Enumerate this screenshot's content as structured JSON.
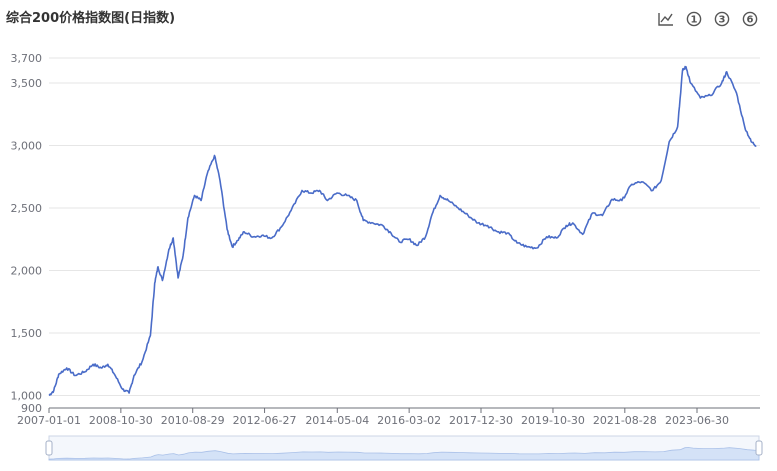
{
  "title": "综合200价格指数图(日指数)",
  "toolbar": {
    "items": [
      {
        "name": "line-chart-icon"
      },
      {
        "name": "period-1-button",
        "label": "1"
      },
      {
        "name": "period-3-button",
        "label": "3"
      },
      {
        "name": "period-6-button",
        "label": "6"
      }
    ]
  },
  "colors": {
    "line": "#4a6cc8",
    "grid": "#e6e6e6",
    "axis": "#6e7079",
    "zoom_fill": "#d4e2f7",
    "zoom_border": "#cdd6e6"
  },
  "chart_data": {
    "type": "line",
    "title": "综合200价格指数图(日指数)",
    "xlabel": "",
    "ylabel": "",
    "x_range": [
      "2007-01-01",
      "2024-12-31"
    ],
    "ylim": [
      900,
      3700
    ],
    "y_ticks": [
      900,
      1000,
      1500,
      2000,
      2500,
      3000,
      3500,
      3700
    ],
    "y_tick_labels": [
      "900",
      "1,000",
      "1,500",
      "2,000",
      "2,500",
      "3,000",
      "3,500",
      "3,700"
    ],
    "x_tick_labels": [
      "2007-01-01",
      "2008-10-30",
      "2010-08-29",
      "2012-06-27",
      "2014-05-04",
      "2016-03-02",
      "2017-12-30",
      "2019-10-30",
      "2021-08-28",
      "2023-06-30"
    ],
    "grid": true,
    "legend": "none",
    "series": [
      {
        "points": [
          [
            "2007-01-01",
            1000
          ],
          [
            "2007-02-15",
            1040
          ],
          [
            "2007-04-01",
            1170
          ],
          [
            "2007-06-15",
            1220
          ],
          [
            "2007-09-01",
            1160
          ],
          [
            "2007-12-01",
            1190
          ],
          [
            "2008-02-15",
            1250
          ],
          [
            "2008-05-01",
            1220
          ],
          [
            "2008-07-01",
            1250
          ],
          [
            "2008-09-01",
            1170
          ],
          [
            "2008-11-15",
            1050
          ],
          [
            "2009-01-15",
            1020
          ],
          [
            "2009-03-01",
            1160
          ],
          [
            "2009-05-15",
            1270
          ],
          [
            "2009-08-01",
            1480
          ],
          [
            "2009-09-10",
            1900
          ],
          [
            "2009-10-10",
            2030
          ],
          [
            "2009-11-20",
            1920
          ],
          [
            "2010-01-20",
            2170
          ],
          [
            "2010-03-01",
            2260
          ],
          [
            "2010-04-15",
            1940
          ],
          [
            "2010-06-01",
            2120
          ],
          [
            "2010-07-15",
            2420
          ],
          [
            "2010-09-15",
            2600
          ],
          [
            "2010-11-15",
            2560
          ],
          [
            "2011-01-10",
            2770
          ],
          [
            "2011-03-20",
            2920
          ],
          [
            "2011-05-10",
            2720
          ],
          [
            "2011-07-15",
            2330
          ],
          [
            "2011-09-01",
            2190
          ],
          [
            "2011-10-20",
            2240
          ],
          [
            "2011-12-20",
            2310
          ],
          [
            "2012-03-15",
            2270
          ],
          [
            "2012-06-01",
            2280
          ],
          [
            "2012-09-01",
            2260
          ],
          [
            "2012-12-01",
            2350
          ],
          [
            "2013-03-01",
            2480
          ],
          [
            "2013-06-10",
            2640
          ],
          [
            "2013-09-01",
            2620
          ],
          [
            "2013-11-20",
            2640
          ],
          [
            "2014-02-01",
            2560
          ],
          [
            "2014-05-01",
            2620
          ],
          [
            "2014-08-01",
            2600
          ],
          [
            "2014-11-01",
            2560
          ],
          [
            "2015-01-01",
            2400
          ],
          [
            "2015-04-01",
            2380
          ],
          [
            "2015-07-01",
            2360
          ],
          [
            "2015-09-15",
            2300
          ],
          [
            "2015-12-01",
            2230
          ],
          [
            "2016-03-01",
            2250
          ],
          [
            "2016-05-15",
            2200
          ],
          [
            "2016-08-01",
            2270
          ],
          [
            "2016-10-01",
            2450
          ],
          [
            "2016-12-15",
            2600
          ],
          [
            "2017-03-01",
            2560
          ],
          [
            "2017-06-01",
            2500
          ],
          [
            "2017-09-01",
            2440
          ],
          [
            "2017-12-01",
            2380
          ],
          [
            "2018-03-01",
            2360
          ],
          [
            "2018-06-01",
            2310
          ],
          [
            "2018-09-01",
            2300
          ],
          [
            "2018-12-01",
            2220
          ],
          [
            "2019-03-01",
            2190
          ],
          [
            "2019-06-01",
            2180
          ],
          [
            "2019-09-01",
            2270
          ],
          [
            "2019-12-01",
            2260
          ],
          [
            "2020-03-01",
            2360
          ],
          [
            "2020-05-01",
            2380
          ],
          [
            "2020-08-01",
            2290
          ],
          [
            "2020-11-01",
            2460
          ],
          [
            "2021-02-01",
            2440
          ],
          [
            "2021-05-01",
            2570
          ],
          [
            "2021-08-01",
            2560
          ],
          [
            "2021-11-01",
            2690
          ],
          [
            "2022-02-01",
            2710
          ],
          [
            "2022-05-15",
            2640
          ],
          [
            "2022-08-01",
            2720
          ],
          [
            "2022-10-15",
            3030
          ],
          [
            "2023-01-01",
            3150
          ],
          [
            "2023-02-15",
            3600
          ],
          [
            "2023-03-20",
            3630
          ],
          [
            "2023-05-01",
            3500
          ],
          [
            "2023-08-01",
            3380
          ],
          [
            "2023-11-01",
            3400
          ],
          [
            "2024-02-15",
            3500
          ],
          [
            "2024-04-01",
            3590
          ],
          [
            "2024-07-01",
            3420
          ],
          [
            "2024-09-15",
            3150
          ],
          [
            "2024-11-15",
            3030
          ],
          [
            "2024-12-31",
            3000
          ]
        ]
      }
    ]
  }
}
